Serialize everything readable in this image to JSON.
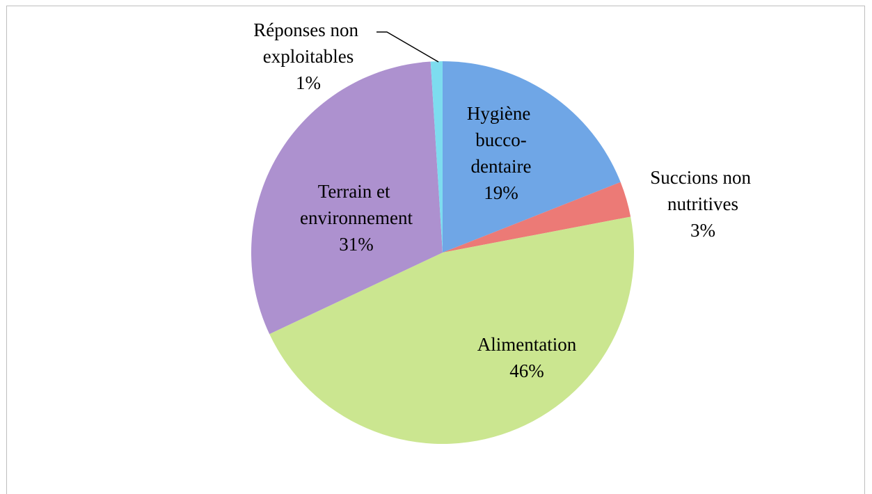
{
  "chart_data": {
    "type": "pie",
    "categories": [
      "Hygiène bucco-dentaire",
      "Succions non nutritives",
      "Alimentation",
      "Terrain et environnement",
      "Réponses non exploitables"
    ],
    "values": [
      19,
      3,
      46,
      31,
      1
    ],
    "value_labels": [
      "19%",
      "3%",
      "46%",
      "31%",
      "1%"
    ],
    "colors": [
      "#6fa6e6",
      "#ec7a76",
      "#cbe690",
      "#ad91cf",
      "#7ddcef"
    ]
  }
}
